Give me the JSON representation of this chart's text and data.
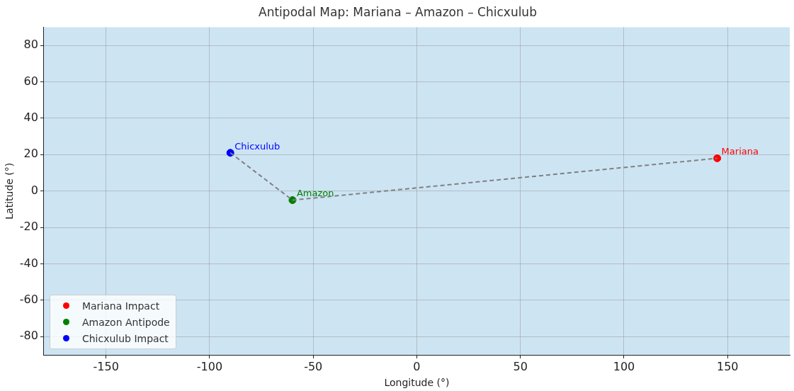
{
  "chart_data": {
    "type": "scatter",
    "title": "Antipodal Map: Mariana – Amazon – Chicxulub",
    "xlabel": "Longitude (°)",
    "ylabel": "Latitude (°)",
    "xlim": [
      -180,
      180
    ],
    "ylim": [
      -90,
      90
    ],
    "xticks": [
      -150,
      -100,
      -50,
      0,
      50,
      100,
      150
    ],
    "yticks": [
      -80,
      -60,
      -40,
      -20,
      0,
      20,
      40,
      60,
      80
    ],
    "grid": true,
    "legend": "bottom left",
    "marker": "circle",
    "series": [
      {
        "type": "line",
        "color": "#808080",
        "line_style": "dashed",
        "marker": "none",
        "x": [
          -90,
          -60,
          145
        ],
        "values": [
          21,
          -5,
          18
        ]
      },
      {
        "name": "Mariana Impact",
        "color": "#ff0000",
        "x": [
          145
        ],
        "values": [
          18
        ]
      },
      {
        "name": "Amazon Antipode",
        "color": "#008000",
        "x": [
          -60
        ],
        "values": [
          -5
        ]
      },
      {
        "name": "Chicxulub Impact",
        "color": "#0000ff",
        "x": [
          -90
        ],
        "values": [
          21
        ]
      }
    ],
    "annotations": [
      {
        "text": "Mariana",
        "x": 145,
        "y": 18
      },
      {
        "text": "Amazon",
        "x": -60,
        "y": -5
      },
      {
        "text": "Chicxulub",
        "x": -90,
        "y": 21
      }
    ]
  }
}
